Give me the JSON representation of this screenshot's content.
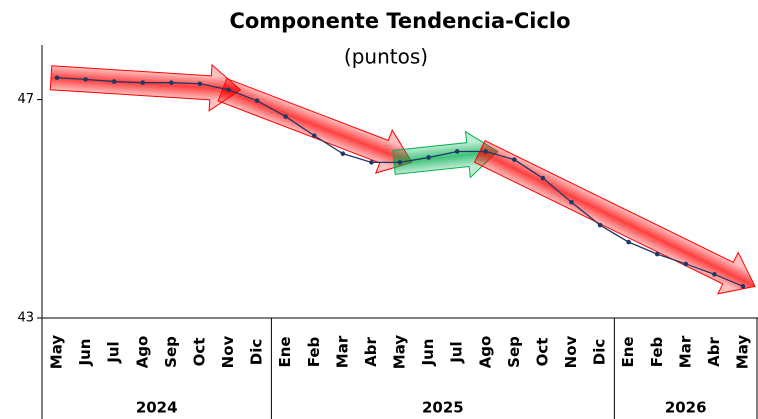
{
  "chart_data": {
    "type": "line",
    "title": "Componente Tendencia-Ciclo",
    "subtitle": "(puntos)",
    "categories": [
      "May",
      "Jun",
      "Jul",
      "Ago",
      "Sep",
      "Oct",
      "Nov",
      "Dic",
      "Ene",
      "Feb",
      "Mar",
      "Abr",
      "May",
      "Jun",
      "Jul",
      "Ago",
      "Sep",
      "Oct",
      "Nov",
      "Dic",
      "Ene",
      "Feb",
      "Mar",
      "Abr",
      "May"
    ],
    "year_groups": [
      {
        "label": "2024",
        "months": 8
      },
      {
        "label": "2025",
        "months": 12
      },
      {
        "label": "2026",
        "months": 5
      }
    ],
    "series": [
      {
        "name": "Tendencia-Ciclo",
        "color": "#1f3864",
        "values": [
          47.4,
          47.37,
          47.33,
          47.31,
          47.31,
          47.29,
          47.18,
          46.98,
          46.69,
          46.34,
          46.01,
          45.85,
          45.85,
          45.94,
          46.05,
          46.05,
          45.9,
          45.56,
          45.12,
          44.7,
          44.39,
          44.17,
          43.99,
          43.8,
          43.58
        ]
      }
    ],
    "trend_arrows": [
      {
        "from": 0,
        "to": 6,
        "color": "#ff0000"
      },
      {
        "from": 6,
        "to": 12,
        "color": "#ff0000"
      },
      {
        "from": 12,
        "to": 15,
        "color": "#00b050"
      },
      {
        "from": 15,
        "to": 24,
        "color": "#ff0000"
      }
    ],
    "ylim": [
      43,
      48
    ],
    "yticks": [
      43,
      47
    ]
  }
}
